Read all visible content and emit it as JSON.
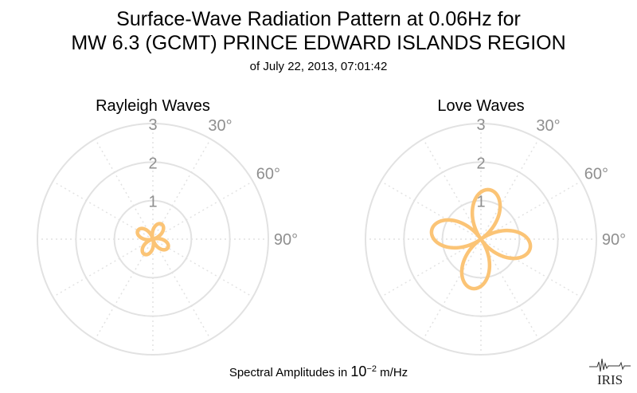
{
  "title": {
    "line1": "Surface-Wave Radiation Pattern at 0.06Hz for",
    "line2": "MW 6.3 (GCMT) PRINCE EDWARD ISLANDS REGION",
    "line3": "of July 22, 2013, 07:01:42"
  },
  "footer": {
    "prefix": "Spectral Amplitudes in ",
    "base": "10",
    "exponent": "−2",
    "unit": " m/Hz"
  },
  "logo": {
    "text": "IRIS"
  },
  "colors": {
    "pattern": "#fbc476",
    "grid": "#e2e2e2",
    "label": "#8f8f8f"
  },
  "chart_data": [
    {
      "type": "polar-line",
      "title": "Rayleigh Waves",
      "r_ticks": [
        "1",
        "2",
        "3"
      ],
      "r_max": 3,
      "angle_ticks": [
        "30°",
        "60°",
        "90°"
      ],
      "series": [
        {
          "lobes": 4,
          "max_amplitude": 0.45,
          "lobe_azimuths_deg": [
            30,
            120,
            210,
            300
          ]
        }
      ]
    },
    {
      "type": "polar-line",
      "title": "Love Waves",
      "r_ticks": [
        "1",
        "2",
        "3"
      ],
      "r_max": 3,
      "angle_ticks": [
        "30°",
        "60°",
        "90°"
      ],
      "series": [
        {
          "lobes": 4,
          "max_amplitude": 1.3,
          "lobe_azimuths_deg": [
            10,
            100,
            190,
            280
          ]
        }
      ]
    }
  ]
}
